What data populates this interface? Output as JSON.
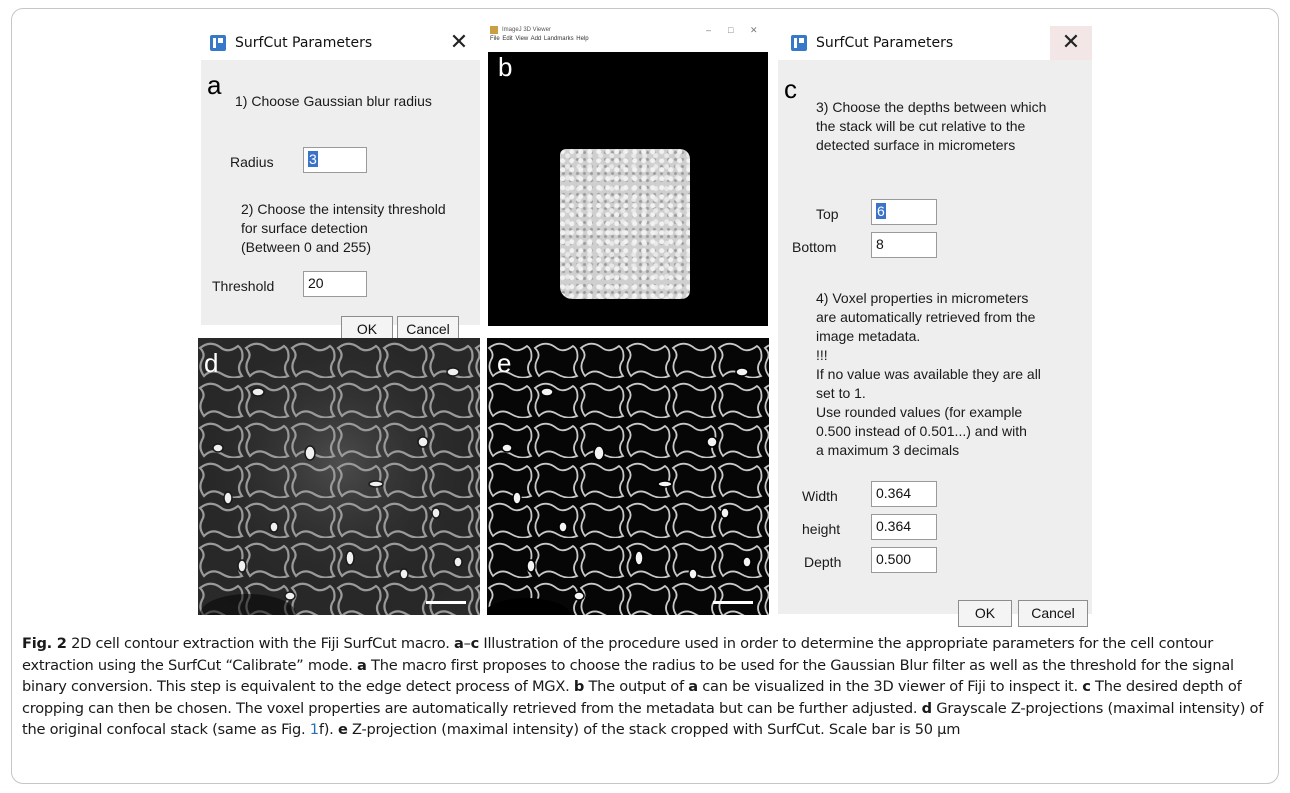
{
  "dialog_a": {
    "title": "SurfCut Parameters",
    "close": "✕",
    "letter": "a",
    "msg1": "1) Choose Gaussian blur radius",
    "radius_label": "Radius",
    "radius_value": "3",
    "msg2_lines": [
      "2) Choose the intensity threshold",
      "for surface detection",
      "(Between 0 and 255)"
    ],
    "threshold_label": "Threshold",
    "threshold_value": "20",
    "ok": "OK",
    "cancel": "Cancel"
  },
  "viewer_b": {
    "title": "ImageJ 3D Viewer",
    "menu": "File  Edit  View  Add  Landmarks  Help",
    "minimize": "–",
    "maximize": "□",
    "close": "✕",
    "letter": "b"
  },
  "dialog_c": {
    "title": "SurfCut Parameters",
    "close": "✕",
    "letter": "c",
    "msg3_lines": [
      "3) Choose the depths between which",
      "the stack will be cut relative to the",
      "detected surface in micrometers"
    ],
    "top_label": "Top",
    "top_value": "6",
    "bottom_label": "Bottom",
    "bottom_value": "8",
    "msg4_lines": [
      "4) Voxel properties in micrometers",
      "are automatically retrieved from the",
      "image metadata.",
      "!!!",
      "If no value was available they are all",
      "set to 1.",
      "Use rounded values (for example",
      "0.500 instead of 0.501...) and with",
      "a maximum 3 decimals"
    ],
    "width_label": "Width",
    "width_value": "0.364",
    "height_label": "height",
    "height_value": "0.364",
    "depth_label": "Depth",
    "depth_value": "0.500",
    "ok": "OK",
    "cancel": "Cancel"
  },
  "image_d": {
    "letter": "d"
  },
  "image_e": {
    "letter": "e"
  },
  "caption": {
    "fig_label": "Fig. 2",
    "title": " 2D cell contour extraction with the Fiji SurfCut macro. ",
    "range_a": "a",
    "range_dash": "–",
    "range_c": "c",
    "t1": " Illustration of the procedure used in order to determine the appropriate parameters for the cell contour extraction using the SurfCut “Calibrate” mode. ",
    "a_label": "a",
    "t2": " The macro first proposes to choose the radius to be used for the Gaussian Blur filter as well as the threshold for the signal binary conversion. This step is equivalent to the edge detect process of MGX. ",
    "b_label": "b",
    "t3": " The output of ",
    "a_ref": "a",
    "t4": " can be visualized in the 3D viewer of Fiji to inspect it. ",
    "c_label": "c",
    "t5": " The desired depth of cropping can then be chosen. The voxel properties are automatically retrieved from the metadata but can be further adjusted. ",
    "d_label": "d",
    "t6": " Grayscale Z-projections (maximal intensity) of the original confocal stack (same as Fig. ",
    "fig_ref": "1",
    "t7": "f). ",
    "e_label": "e",
    "t8": " Z-projection (maximal intensity) of the stack cropped with SurfCut. Scale bar is 50 μm"
  }
}
